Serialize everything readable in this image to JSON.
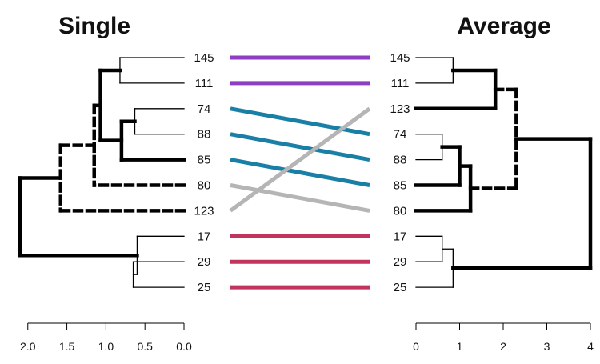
{
  "chart_data": {
    "type": "tanglegram",
    "left": {
      "title": "Single",
      "axis_ticks": [
        "2.0",
        "1.5",
        "1.0",
        "0.5",
        "0.0"
      ],
      "axis_values": [
        2.0,
        1.5,
        1.0,
        0.5,
        0.0
      ],
      "xlim": [
        2.1,
        0.0
      ],
      "leaves": [
        "145",
        "111",
        "74",
        "88",
        "85",
        "80",
        "123",
        "17",
        "29",
        "25"
      ]
    },
    "right": {
      "title": "Average",
      "axis_ticks": [
        "0",
        "1",
        "2",
        "3",
        "4"
      ],
      "axis_values": [
        0,
        1,
        2,
        3,
        4
      ],
      "xlim": [
        0,
        4
      ],
      "leaves": [
        "145",
        "111",
        "123",
        "74",
        "88",
        "85",
        "80",
        "17",
        "29",
        "25"
      ]
    },
    "connections": [
      {
        "from": "145",
        "to": "145",
        "color": "#8e3ec2"
      },
      {
        "from": "111",
        "to": "111",
        "color": "#8e3ec2"
      },
      {
        "from": "74",
        "to": "74",
        "color": "#1a7fa6"
      },
      {
        "from": "88",
        "to": "88",
        "color": "#1a7fa6"
      },
      {
        "from": "85",
        "to": "85",
        "color": "#1a7fa6"
      },
      {
        "from": "80",
        "to": "80",
        "color": "#b5b5b5"
      },
      {
        "from": "123",
        "to": "123",
        "color": "#b5b5b5"
      },
      {
        "from": "17",
        "to": "17",
        "color": "#c0345e"
      },
      {
        "from": "29",
        "to": "29",
        "color": "#c0345e"
      },
      {
        "from": "25",
        "to": "25",
        "color": "#c0345e"
      }
    ],
    "left_merges": [
      {
        "id": "a",
        "children": [
          "145",
          "111"
        ],
        "height": 0.82,
        "weight": "thin",
        "style": "solid"
      },
      {
        "id": "b",
        "children": [
          "74",
          "88"
        ],
        "height": 0.63,
        "weight": "thin",
        "style": "solid"
      },
      {
        "id": "c",
        "children": [
          "b",
          "85"
        ],
        "height": 0.8,
        "weight": "bold",
        "style": "solid"
      },
      {
        "id": "d",
        "children": [
          "a",
          "c"
        ],
        "height": 1.07,
        "weight": "bold",
        "style": "solid"
      },
      {
        "id": "e",
        "children": [
          "d",
          "80"
        ],
        "height": 1.15,
        "weight": "bold",
        "style": "dashed"
      },
      {
        "id": "f",
        "children": [
          "e",
          "123"
        ],
        "height": 1.58,
        "weight": "bold",
        "style": "dashed"
      },
      {
        "id": "g",
        "children": [
          "29",
          "25"
        ],
        "height": 0.65,
        "weight": "thin",
        "style": "solid"
      },
      {
        "id": "h",
        "children": [
          "17",
          "g"
        ],
        "height": 0.6,
        "weight": "thin",
        "style": "solid"
      },
      {
        "id": "root",
        "children": [
          "f",
          "h"
        ],
        "height": 2.1,
        "weight": "bold",
        "style": "solid"
      }
    ],
    "right_merges": [
      {
        "id": "a",
        "children": [
          "145",
          "111"
        ],
        "height": 0.85,
        "weight": "thin",
        "style": "solid"
      },
      {
        "id": "b",
        "children": [
          "a",
          "123"
        ],
        "height": 1.82,
        "weight": "bold",
        "style": "solid"
      },
      {
        "id": "c",
        "children": [
          "74",
          "88"
        ],
        "height": 0.6,
        "weight": "thin",
        "style": "solid"
      },
      {
        "id": "d",
        "children": [
          "c",
          "85"
        ],
        "height": 1.0,
        "weight": "bold",
        "style": "solid"
      },
      {
        "id": "e",
        "children": [
          "d",
          "80"
        ],
        "height": 1.25,
        "weight": "bold",
        "style": "solid"
      },
      {
        "id": "f",
        "children": [
          "b",
          "e"
        ],
        "height": 2.3,
        "weight": "bold",
        "style": "dashed"
      },
      {
        "id": "g",
        "children": [
          "17",
          "29"
        ],
        "height": 0.6,
        "weight": "thin",
        "style": "solid"
      },
      {
        "id": "h",
        "children": [
          "g",
          "25"
        ],
        "height": 0.85,
        "weight": "thin",
        "style": "solid"
      },
      {
        "id": "root",
        "children": [
          "f",
          "h"
        ],
        "height": 4.0,
        "weight": "bold",
        "style": "solid"
      }
    ]
  }
}
